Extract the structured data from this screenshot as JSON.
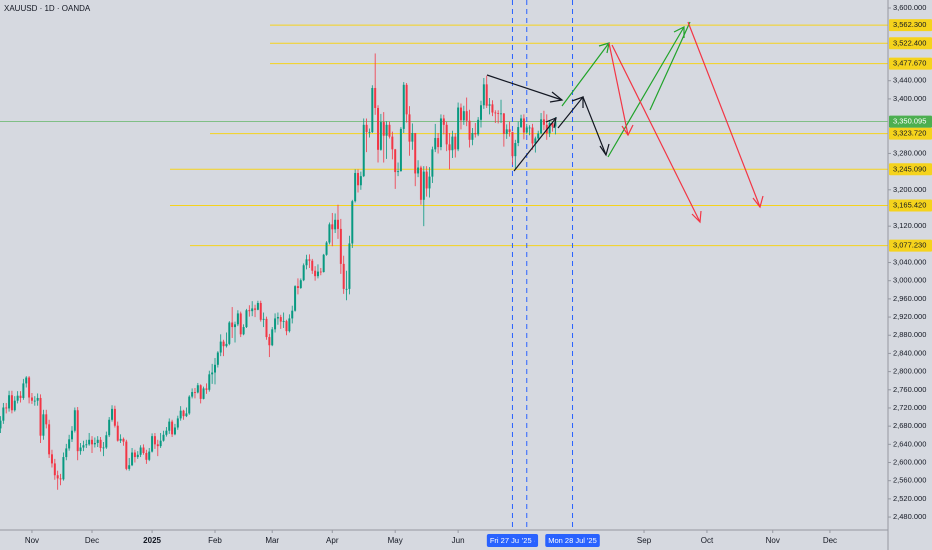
{
  "chart_data": {
    "type": "candlestick",
    "title": "XAUUSD · 1D · OANDA",
    "open": [
      2675,
      2692,
      2721,
      2719,
      2748,
      2715,
      2736,
      2747,
      2742,
      2774,
      2787,
      2743,
      2736,
      2736,
      2742,
      2659,
      2706,
      2684,
      2618,
      2598,
      2572,
      2565,
      2563,
      2612,
      2631,
      2651,
      2670,
      2715,
      2625,
      2633,
      2638,
      2640,
      2650,
      2640,
      2643,
      2650,
      2632,
      2633,
      2660,
      2694,
      2718,
      2681,
      2648,
      2652,
      2646,
      2586,
      2594,
      2622,
      2612,
      2617,
      2633,
      2621,
      2606,
      2624,
      2658,
      2640,
      2636,
      2648,
      2661,
      2670,
      2690,
      2662,
      2677,
      2697,
      2714,
      2702,
      2708,
      2745,
      2755,
      2754,
      2770,
      2740,
      2763,
      2760,
      2794,
      2798,
      2815,
      2842,
      2866,
      2856,
      2861,
      2908,
      2898,
      2904,
      2928,
      2882,
      2898,
      2935,
      2933,
      2939,
      2936,
      2951,
      2914,
      2916,
      2876,
      2858,
      2893,
      2917,
      2920,
      2910,
      2911,
      2889,
      2917,
      2934,
      2988,
      2984,
      3001,
      3034,
      3047,
      3044,
      3022,
      3010,
      3020,
      3019,
      3057,
      3084,
      3124,
      3113,
      3134,
      3114,
      3037,
      2982,
      2982,
      3082,
      3175,
      3237,
      3210,
      3230,
      3343,
      3327,
      3327,
      3424,
      3380,
      3288,
      3349,
      3319,
      3343,
      3317,
      3289,
      3239,
      3241,
      3334,
      3431,
      3366,
      3306,
      3325,
      3236,
      3249,
      3178,
      3240,
      3203,
      3229,
      3289,
      3314,
      3294,
      3357,
      3343,
      3300,
      3287,
      3317,
      3289,
      3381,
      3353,
      3373,
      3352,
      3310,
      3325,
      3322,
      3354,
      3386,
      3432,
      3385,
      3388,
      3370,
      3369,
      3368,
      3368,
      3323,
      3333,
      3327,
      3274,
      3303,
      3338,
      3357,
      3326,
      3337,
      3337,
      3302,
      3313,
      3324,
      3355,
      3343,
      3324,
      3347,
      3339
    ],
    "high": [
      2702,
      2731,
      2731,
      2758,
      2758,
      2746,
      2757,
      2757,
      2784,
      2790,
      2790,
      2753,
      2746,
      2752,
      2750,
      2716,
      2716,
      2694,
      2628,
      2608,
      2582,
      2575,
      2622,
      2641,
      2661,
      2680,
      2721,
      2722,
      2643,
      2648,
      2650,
      2665,
      2658,
      2655,
      2658,
      2656,
      2645,
      2668,
      2700,
      2726,
      2725,
      2690,
      2662,
      2655,
      2650,
      2610,
      2632,
      2628,
      2625,
      2638,
      2640,
      2628,
      2632,
      2664,
      2665,
      2650,
      2665,
      2670,
      2678,
      2697,
      2694,
      2685,
      2703,
      2724,
      2716,
      2721,
      2748,
      2763,
      2764,
      2775,
      2772,
      2767,
      2774,
      2802,
      2817,
      2830,
      2845,
      2882,
      2870,
      2886,
      2911,
      2942,
      2910,
      2935,
      2932,
      2904,
      2938,
      2946,
      2955,
      2947,
      2956,
      2956,
      2930,
      2921,
      2883,
      2898,
      2928,
      2930,
      2925,
      2930,
      2914,
      2926,
      2945,
      2990,
      3005,
      3005,
      3038,
      3057,
      3058,
      3048,
      3032,
      3036,
      3028,
      3059,
      3087,
      3128,
      3149,
      3148,
      3167,
      3136,
      3055,
      3022,
      3099,
      3178,
      3245,
      3245,
      3240,
      3357,
      3357,
      3335,
      3430,
      3500,
      3386,
      3367,
      3371,
      3351,
      3350,
      3328,
      3290,
      3260,
      3338,
      3437,
      3435,
      3384,
      3346,
      3325,
      3265,
      3253,
      3252,
      3252,
      3250,
      3295,
      3345,
      3325,
      3366,
      3365,
      3350,
      3325,
      3330,
      3325,
      3392,
      3390,
      3385,
      3403,
      3376,
      3336,
      3347,
      3360,
      3396,
      3446,
      3451,
      3402,
      3397,
      3375,
      3375,
      3398,
      3369,
      3344,
      3350,
      3328,
      3310,
      3350,
      3365,
      3366,
      3345,
      3342,
      3345,
      3317,
      3330,
      3369,
      3374,
      3366,
      3352,
      3350,
      3360
    ],
    "low": [
      2665,
      2685,
      2708,
      2712,
      2708,
      2712,
      2730,
      2732,
      2738,
      2765,
      2730,
      2729,
      2725,
      2725,
      2643,
      2650,
      2675,
      2610,
      2589,
      2562,
      2540,
      2550,
      2560,
      2605,
      2626,
      2645,
      2666,
      2605,
      2617,
      2625,
      2632,
      2637,
      2621,
      2633,
      2634,
      2624,
      2614,
      2630,
      2656,
      2690,
      2677,
      2646,
      2643,
      2637,
      2583,
      2582,
      2592,
      2600,
      2608,
      2612,
      2617,
      2597,
      2603,
      2622,
      2630,
      2614,
      2632,
      2646,
      2657,
      2663,
      2656,
      2660,
      2672,
      2692,
      2694,
      2700,
      2705,
      2741,
      2741,
      2752,
      2730,
      2739,
      2751,
      2756,
      2773,
      2772,
      2809,
      2834,
      2834,
      2853,
      2858,
      2874,
      2864,
      2900,
      2876,
      2880,
      2896,
      2921,
      2922,
      2920,
      2935,
      2910,
      2898,
      2870,
      2832,
      2856,
      2886,
      2903,
      2894,
      2896,
      2880,
      2886,
      2906,
      2932,
      2970,
      2982,
      2999,
      3025,
      3028,
      3015,
      3000,
      3005,
      3012,
      3018,
      3055,
      3080,
      3076,
      3105,
      3092,
      3015,
      2971,
      2957,
      2970,
      3072,
      3172,
      3194,
      3200,
      3228,
      3283,
      3315,
      3325,
      3365,
      3260,
      3286,
      3260,
      3268,
      3313,
      3267,
      3202,
      3230,
      3240,
      3325,
      3348,
      3275,
      3288,
      3208,
      3228,
      3167,
      3120,
      3185,
      3183,
      3215,
      3283,
      3280,
      3287,
      3322,
      3285,
      3245,
      3270,
      3271,
      3285,
      3333,
      3343,
      3340,
      3293,
      3298,
      3315,
      3318,
      3337,
      3378,
      3380,
      3366,
      3362,
      3347,
      3346,
      3347,
      3295,
      3312,
      3317,
      3255,
      3246,
      3296,
      3336,
      3311,
      3322,
      3320,
      3288,
      3282,
      3310,
      3322,
      3331,
      3310,
      3316,
      3328,
      3322
    ],
    "close": [
      2692,
      2721,
      2719,
      2748,
      2715,
      2736,
      2747,
      2742,
      2774,
      2787,
      2743,
      2736,
      2736,
      2742,
      2659,
      2706,
      2684,
      2618,
      2598,
      2572,
      2565,
      2563,
      2612,
      2631,
      2651,
      2670,
      2715,
      2625,
      2633,
      2638,
      2640,
      2650,
      2640,
      2643,
      2650,
      2632,
      2633,
      2660,
      2694,
      2718,
      2681,
      2648,
      2652,
      2646,
      2586,
      2594,
      2622,
      2612,
      2617,
      2633,
      2621,
      2606,
      2624,
      2658,
      2640,
      2636,
      2648,
      2661,
      2670,
      2690,
      2662,
      2677,
      2697,
      2714,
      2702,
      2708,
      2745,
      2755,
      2754,
      2770,
      2740,
      2763,
      2760,
      2794,
      2798,
      2815,
      2842,
      2866,
      2856,
      2861,
      2908,
      2898,
      2904,
      2928,
      2882,
      2898,
      2935,
      2933,
      2939,
      2936,
      2951,
      2914,
      2916,
      2876,
      2858,
      2893,
      2917,
      2920,
      2910,
      2911,
      2889,
      2917,
      2934,
      2988,
      2984,
      3001,
      3034,
      3047,
      3044,
      3022,
      3010,
      3020,
      3019,
      3057,
      3084,
      3124,
      3113,
      3134,
      3114,
      3037,
      2982,
      2982,
      3082,
      3175,
      3237,
      3210,
      3230,
      3343,
      3327,
      3327,
      3424,
      3380,
      3288,
      3349,
      3319,
      3343,
      3317,
      3289,
      3239,
      3241,
      3334,
      3431,
      3366,
      3306,
      3325,
      3236,
      3249,
      3178,
      3240,
      3203,
      3229,
      3289,
      3314,
      3294,
      3357,
      3343,
      3300,
      3287,
      3317,
      3289,
      3381,
      3353,
      3373,
      3352,
      3310,
      3325,
      3322,
      3354,
      3386,
      3432,
      3385,
      3388,
      3370,
      3369,
      3368,
      3368,
      3323,
      3333,
      3327,
      3274,
      3303,
      3338,
      3357,
      3326,
      3337,
      3337,
      3302,
      3313,
      3324,
      3355,
      3343,
      3324,
      3347,
      3339,
      3350
    ],
    "up_color": "#089981",
    "down_color": "#f23645",
    "xlim": [
      -0.17,
      310.3
    ],
    "ylim": [
      2451.5,
      3617.6
    ],
    "xticks": [
      {
        "value": 11,
        "label": "Nov"
      },
      {
        "value": 32,
        "label": "Dec"
      },
      {
        "value": 53,
        "label": "2025"
      },
      {
        "value": 75,
        "label": "Feb"
      },
      {
        "value": 95,
        "label": "Mar"
      },
      {
        "value": 116,
        "label": "Apr"
      },
      {
        "value": 138,
        "label": "May"
      },
      {
        "value": 160,
        "label": "Jun"
      },
      {
        "value": 225,
        "label": "Sep"
      },
      {
        "value": 247,
        "label": "Oct"
      },
      {
        "value": 270,
        "label": "Nov"
      },
      {
        "value": 290,
        "label": "Dec"
      }
    ],
    "yticks": [
      {
        "value": 3600,
        "label": "3,600.000"
      },
      {
        "value": 3440,
        "label": "3,440.000"
      },
      {
        "value": 3400,
        "label": "3,400.000"
      },
      {
        "value": 3280,
        "label": "3,280.000"
      },
      {
        "value": 3200,
        "label": "3,200.000"
      },
      {
        "value": 3120,
        "label": "3,120.000"
      },
      {
        "value": 3040,
        "label": "3,040.000"
      },
      {
        "value": 3000,
        "label": "3,000.000"
      },
      {
        "value": 2960,
        "label": "2,960.000"
      },
      {
        "value": 2920,
        "label": "2,920.000"
      },
      {
        "value": 2880,
        "label": "2,880.000"
      },
      {
        "value": 2840,
        "label": "2,840.000"
      },
      {
        "value": 2800,
        "label": "2,800.000"
      },
      {
        "value": 2760,
        "label": "2,760.000"
      },
      {
        "value": 2720,
        "label": "2,720.000"
      },
      {
        "value": 2680,
        "label": "2,680.000"
      },
      {
        "value": 2640,
        "label": "2,640.000"
      },
      {
        "value": 2600,
        "label": "2,600.000"
      },
      {
        "value": 2560,
        "label": "2,560.000"
      },
      {
        "value": 2520,
        "label": "2,520.000"
      },
      {
        "value": 2480,
        "label": "2,480.000"
      }
    ],
    "grid": false,
    "levels": [
      {
        "value": 3562.3,
        "label": "3,562.300"
      },
      {
        "value": 3522.4,
        "label": "3,522.400"
      },
      {
        "value": 3477.67,
        "label": "3,477.670"
      },
      {
        "value": 3323.72,
        "label": "3,323.720"
      },
      {
        "value": 3245.09,
        "label": "3,245.090"
      },
      {
        "value": 3165.42,
        "label": "3,165.420"
      },
      {
        "value": 3077.23,
        "label": "3,077.230"
      }
    ],
    "level_color": "#f5d31c",
    "last_price": {
      "value": 3350.095,
      "label": "3,350.095"
    },
    "last_price_color": "#4caf50",
    "markers": [
      {
        "value": 179,
        "label": "Fri 27 Jun '25"
      },
      {
        "value": 184,
        "label": "'25"
      },
      {
        "value": 200,
        "label": "Mon 28 Jul '25"
      }
    ],
    "marker_color": "#2962ff"
  }
}
